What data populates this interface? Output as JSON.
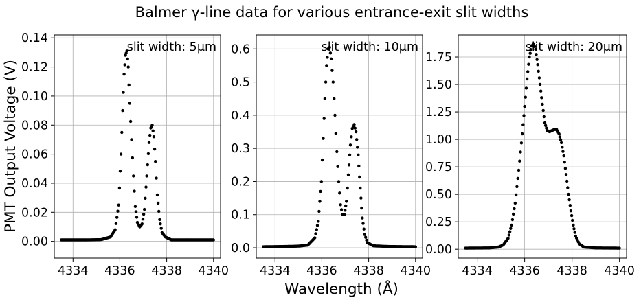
{
  "figure": {
    "title": "Balmer γ-line data for various entrance-exit slit widths",
    "xlabel": "Wavelength (Å)",
    "ylabel": "PMT Output Voltage (V)"
  },
  "chart_data": [
    {
      "type": "scatter",
      "panel_label": "slit width: 5μm",
      "grid": true,
      "marker_color": "#000000",
      "xlim": [
        4333.2,
        4340.3
      ],
      "ylim": [
        -0.0115,
        0.142
      ],
      "x_ticks": [
        4334,
        4336,
        4338,
        4340
      ],
      "x_tick_labels": [
        "4334",
        "4336",
        "4338",
        "4340"
      ],
      "y_ticks": [
        0.0,
        0.02,
        0.04,
        0.06,
        0.08,
        0.1,
        0.12,
        0.14
      ],
      "y_tick_labels": [
        "0.00",
        "0.02",
        "0.04",
        "0.06",
        "0.08",
        "0.10",
        "0.12",
        "0.14"
      ],
      "profile_points": [
        [
          4333.5,
          0.001
        ],
        [
          4334.5,
          0.001
        ],
        [
          4335.2,
          0.0012
        ],
        [
          4335.6,
          0.003
        ],
        [
          4335.8,
          0.008
        ],
        [
          4335.95,
          0.025
        ],
        [
          4336.05,
          0.06
        ],
        [
          4336.12,
          0.09
        ],
        [
          4336.18,
          0.115
        ],
        [
          4336.24,
          0.128
        ],
        [
          4336.3,
          0.131
        ],
        [
          4336.36,
          0.12
        ],
        [
          4336.42,
          0.095
        ],
        [
          4336.5,
          0.07
        ],
        [
          4336.58,
          0.045
        ],
        [
          4336.66,
          0.024
        ],
        [
          4336.75,
          0.013
        ],
        [
          4336.85,
          0.01
        ],
        [
          4336.95,
          0.012
        ],
        [
          4337.05,
          0.022
        ],
        [
          4337.15,
          0.045
        ],
        [
          4337.25,
          0.068
        ],
        [
          4337.32,
          0.078
        ],
        [
          4337.38,
          0.08
        ],
        [
          4337.45,
          0.072
        ],
        [
          4337.52,
          0.055
        ],
        [
          4337.6,
          0.032
        ],
        [
          4337.7,
          0.015
        ],
        [
          4337.8,
          0.006
        ],
        [
          4337.95,
          0.003
        ],
        [
          4338.2,
          0.001
        ],
        [
          4339.0,
          0.001
        ],
        [
          4340.0,
          0.001
        ]
      ]
    },
    {
      "type": "scatter",
      "panel_label": "slit width: 10μm",
      "grid": true,
      "marker_color": "#000000",
      "xlim": [
        4333.2,
        4340.3
      ],
      "ylim": [
        -0.031,
        0.642
      ],
      "x_ticks": [
        4334,
        4336,
        4338,
        4340
      ],
      "x_tick_labels": [
        "4334",
        "4336",
        "4338",
        "4340"
      ],
      "y_ticks": [
        0.0,
        0.1,
        0.2,
        0.3,
        0.4,
        0.5,
        0.6
      ],
      "y_tick_labels": [
        "0.0",
        "0.1",
        "0.2",
        "0.3",
        "0.4",
        "0.5",
        "0.6"
      ],
      "profile_points": [
        [
          4333.5,
          0.003
        ],
        [
          4334.5,
          0.004
        ],
        [
          4335.0,
          0.005
        ],
        [
          4335.4,
          0.008
        ],
        [
          4335.7,
          0.03
        ],
        [
          4335.85,
          0.08
        ],
        [
          4335.98,
          0.2
        ],
        [
          4336.06,
          0.33
        ],
        [
          4336.13,
          0.45
        ],
        [
          4336.2,
          0.55
        ],
        [
          4336.27,
          0.6
        ],
        [
          4336.33,
          0.605
        ],
        [
          4336.4,
          0.57
        ],
        [
          4336.48,
          0.5
        ],
        [
          4336.56,
          0.4
        ],
        [
          4336.64,
          0.29
        ],
        [
          4336.72,
          0.2
        ],
        [
          4336.8,
          0.13
        ],
        [
          4336.88,
          0.1
        ],
        [
          4336.96,
          0.1
        ],
        [
          4337.05,
          0.14
        ],
        [
          4337.13,
          0.22
        ],
        [
          4337.22,
          0.31
        ],
        [
          4337.3,
          0.36
        ],
        [
          4337.38,
          0.372
        ],
        [
          4337.46,
          0.35
        ],
        [
          4337.55,
          0.28
        ],
        [
          4337.64,
          0.18
        ],
        [
          4337.73,
          0.09
        ],
        [
          4337.83,
          0.04
        ],
        [
          4337.95,
          0.015
        ],
        [
          4338.2,
          0.006
        ],
        [
          4338.8,
          0.004
        ],
        [
          4340.0,
          0.003
        ]
      ]
    },
    {
      "type": "scatter",
      "panel_label": "slit width: 20μm",
      "grid": true,
      "marker_color": "#000000",
      "xlim": [
        4333.2,
        4340.3
      ],
      "ylim": [
        -0.08,
        1.95
      ],
      "x_ticks": [
        4334,
        4336,
        4338,
        4340
      ],
      "x_tick_labels": [
        "4334",
        "4336",
        "4338",
        "4340"
      ],
      "y_ticks": [
        0.0,
        0.25,
        0.5,
        0.75,
        1.0,
        1.25,
        1.5,
        1.75
      ],
      "y_tick_labels": [
        "0.00",
        "0.25",
        "0.50",
        "0.75",
        "1.00",
        "1.25",
        "1.50",
        "1.75"
      ],
      "profile_points": [
        [
          4333.5,
          0.01
        ],
        [
          4334.5,
          0.012
        ],
        [
          4334.9,
          0.02
        ],
        [
          4335.1,
          0.04
        ],
        [
          4335.3,
          0.1
        ],
        [
          4335.45,
          0.22
        ],
        [
          4335.6,
          0.42
        ],
        [
          4335.75,
          0.72
        ],
        [
          4335.9,
          1.05
        ],
        [
          4336.0,
          1.3
        ],
        [
          4336.1,
          1.55
        ],
        [
          4336.2,
          1.75
        ],
        [
          4336.3,
          1.85
        ],
        [
          4336.38,
          1.87
        ],
        [
          4336.46,
          1.82
        ],
        [
          4336.55,
          1.68
        ],
        [
          4336.65,
          1.5
        ],
        [
          4336.75,
          1.32
        ],
        [
          4336.85,
          1.15
        ],
        [
          4336.95,
          1.08
        ],
        [
          4337.05,
          1.07
        ],
        [
          4337.15,
          1.08
        ],
        [
          4337.25,
          1.09
        ],
        [
          4337.35,
          1.09
        ],
        [
          4337.45,
          1.05
        ],
        [
          4337.55,
          0.97
        ],
        [
          4337.65,
          0.85
        ],
        [
          4337.75,
          0.68
        ],
        [
          4337.85,
          0.5
        ],
        [
          4337.95,
          0.35
        ],
        [
          4338.05,
          0.22
        ],
        [
          4338.15,
          0.12
        ],
        [
          4338.3,
          0.05
        ],
        [
          4338.5,
          0.02
        ],
        [
          4339.0,
          0.012
        ],
        [
          4340.0,
          0.01
        ]
      ]
    }
  ]
}
